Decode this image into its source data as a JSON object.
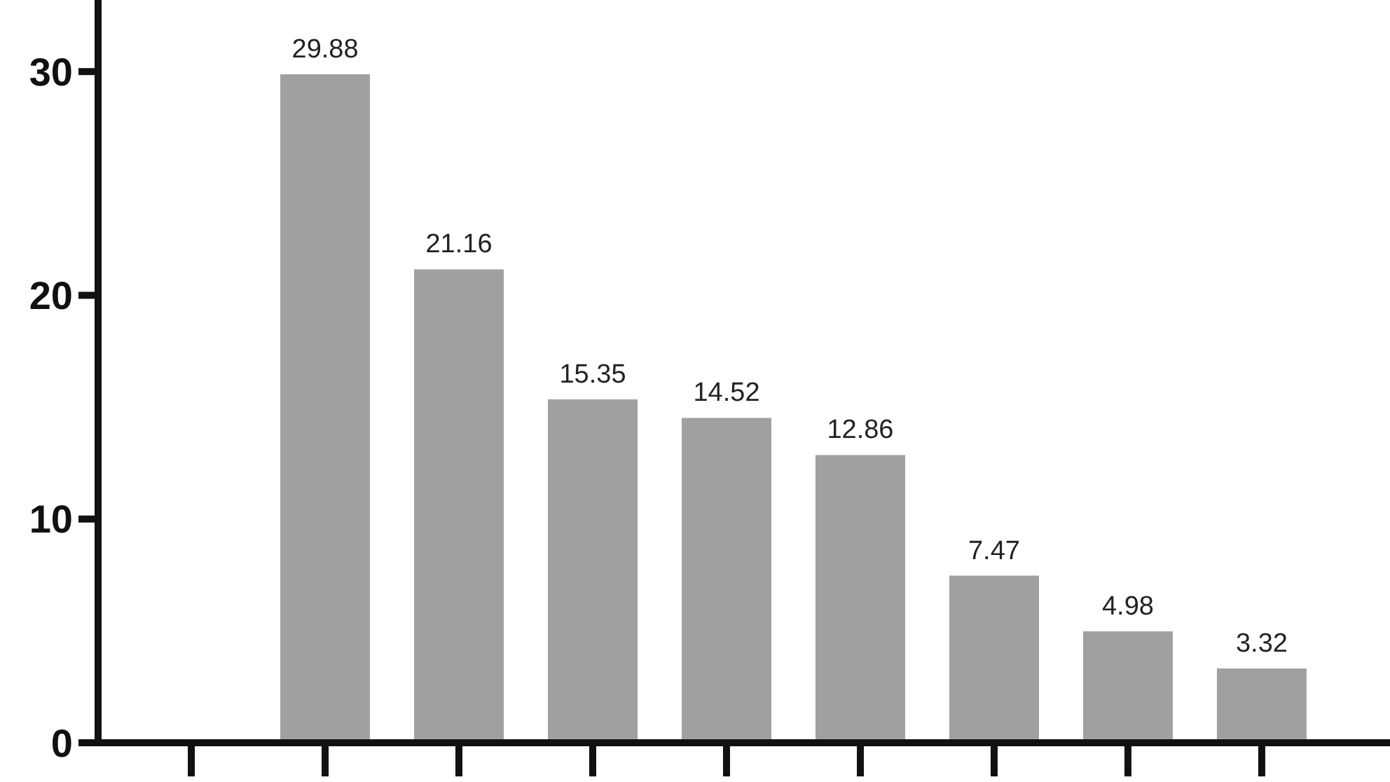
{
  "chart_data": {
    "type": "bar",
    "categories": [
      null,
      null,
      null,
      null,
      null,
      null,
      null,
      null,
      null
    ],
    "values": [
      null,
      29.88,
      21.16,
      15.35,
      14.52,
      12.86,
      7.47,
      4.98,
      3.32
    ],
    "value_labels": [
      null,
      "29.88",
      "21.16",
      "15.35",
      "14.52",
      "12.86",
      "7.47",
      "4.98",
      "3.32"
    ],
    "color": "#a0a0a0",
    "ylim": [
      0,
      33.2
    ],
    "yticks": [
      0,
      10,
      20,
      30
    ],
    "grid": false
  }
}
